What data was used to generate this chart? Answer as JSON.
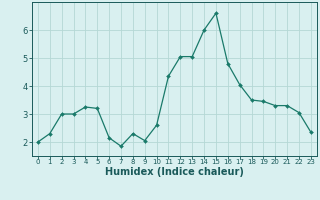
{
  "x": [
    0,
    1,
    2,
    3,
    4,
    5,
    6,
    7,
    8,
    9,
    10,
    11,
    12,
    13,
    14,
    15,
    16,
    17,
    18,
    19,
    20,
    21,
    22,
    23
  ],
  "y": [
    2.0,
    2.3,
    3.0,
    3.0,
    3.25,
    3.2,
    2.15,
    1.85,
    2.3,
    2.05,
    2.6,
    4.35,
    5.05,
    5.05,
    6.0,
    6.6,
    4.8,
    4.05,
    3.5,
    3.45,
    3.3,
    3.3,
    3.05,
    2.35
  ],
  "line_color": "#1a7a6a",
  "marker": "D",
  "marker_size": 2.0,
  "bg_color": "#d9f0f0",
  "grid_color": "#b5d8d5",
  "tick_color": "#1a5a5a",
  "xlabel": "Humidex (Indice chaleur)",
  "xlabel_fontsize": 7,
  "ylabel_ticks": [
    2,
    3,
    4,
    5,
    6
  ],
  "ylim": [
    1.5,
    7.0
  ],
  "xlim": [
    -0.5,
    23.5
  ],
  "xtick_fontsize": 5,
  "ytick_fontsize": 6
}
